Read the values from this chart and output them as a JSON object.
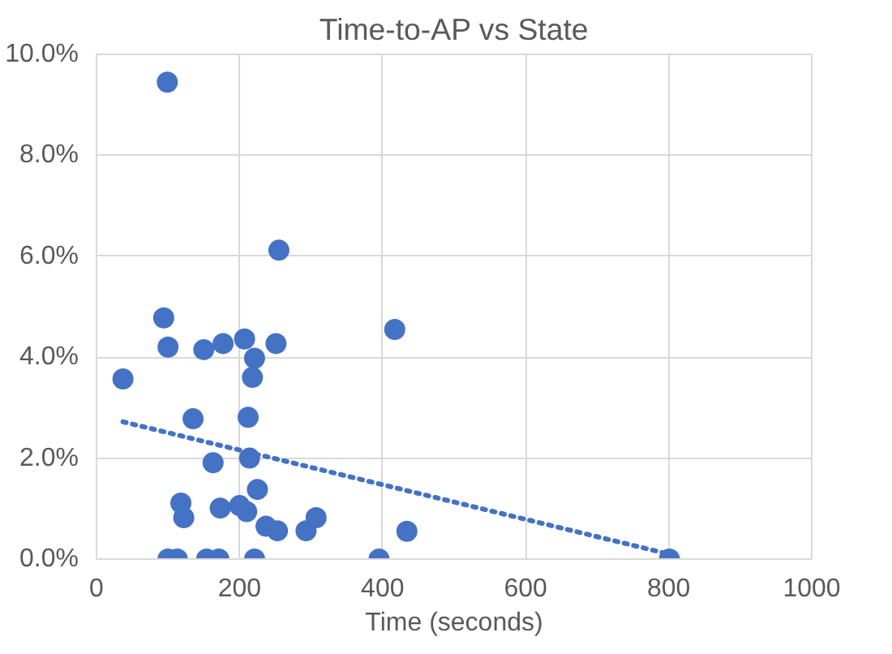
{
  "chart_data": {
    "type": "scatter",
    "title": "Time-to-AP vs State",
    "xlabel": "Time (seconds)",
    "xlim": [
      0,
      1000
    ],
    "xticks": [
      0,
      200,
      400,
      600,
      800,
      1000
    ],
    "ylim": [
      0,
      10
    ],
    "yticks": [
      {
        "value": 0,
        "label": "0.0%"
      },
      {
        "value": 2,
        "label": "2.0%"
      },
      {
        "value": 4,
        "label": "4.0%"
      },
      {
        "value": 6,
        "label": "6.0%"
      },
      {
        "value": 8,
        "label": "8.0%"
      },
      {
        "value": 10,
        "label": "10.0%"
      }
    ],
    "grid": true,
    "marker": "circle",
    "series": [
      {
        "color": "#4472c4",
        "x": [
          99,
          255,
          94,
          100,
          150,
          177,
          207,
          221,
          251,
          37,
          218,
          135,
          212,
          163,
          214,
          118,
          122,
          173,
          200,
          210,
          225,
          237,
          253,
          293,
          307,
          417,
          434,
          100,
          113,
          154,
          171,
          221,
          395,
          801
        ],
        "values": [
          9.45,
          6.12,
          4.78,
          4.2,
          4.15,
          4.27,
          4.36,
          3.98,
          4.27,
          3.57,
          3.6,
          2.78,
          2.81,
          1.91,
          2.0,
          1.11,
          0.82,
          1.01,
          1.06,
          0.94,
          1.38,
          0.65,
          0.56,
          0.56,
          0.82,
          4.55,
          0.55,
          0,
          0,
          0,
          0,
          0,
          0,
          0
        ]
      },
      {
        "type": "line",
        "color": "#4472c4",
        "line_style": "dotted",
        "marker": "none",
        "x": [
          37,
          800
        ],
        "values": [
          2.72,
          0.1
        ]
      }
    ]
  }
}
